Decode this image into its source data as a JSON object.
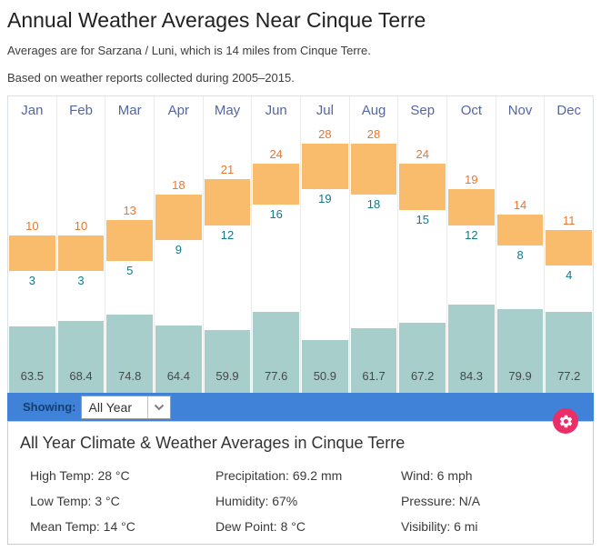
{
  "header": {
    "title": "Annual Weather Averages Near Cinque Terre",
    "subtitle1": "Averages are for Sarzana / Luni, which is 14 miles from Cinque Terre.",
    "subtitle2": "Based on weather reports collected during 2005–2015."
  },
  "chart_data": {
    "type": "bar",
    "categories": [
      "Jan",
      "Feb",
      "Mar",
      "Apr",
      "May",
      "Jun",
      "Jul",
      "Aug",
      "Sep",
      "Oct",
      "Nov",
      "Dec"
    ],
    "series": [
      {
        "name": "High Temp (°C)",
        "values": [
          10,
          10,
          13,
          18,
          21,
          24,
          28,
          28,
          24,
          19,
          14,
          11
        ]
      },
      {
        "name": "Low Temp (°C)",
        "values": [
          3,
          3,
          5,
          9,
          12,
          16,
          19,
          18,
          15,
          12,
          8,
          4
        ]
      },
      {
        "name": "Precipitation (mm)",
        "values": [
          63.5,
          68.4,
          74.8,
          64.4,
          59.9,
          77.6,
          50.9,
          61.7,
          67.2,
          84.3,
          79.9,
          77.2
        ]
      }
    ],
    "legend_position": "none",
    "grid": false,
    "colors": {
      "temp_bar": "#f9bc6d",
      "high_label": "#e8762d",
      "low_label": "#10798c",
      "precip_bar": "#a8cecb",
      "month_label": "#5566a0"
    }
  },
  "toolbar": {
    "showing_label": "Showing:",
    "dropdown_value": "All Year",
    "bar_color": "#3f82d8"
  },
  "settings": {
    "icon": "gear-icon",
    "color": "#ea2e68"
  },
  "summary": {
    "title": "All Year Climate & Weather Averages in Cinque Terre",
    "items": [
      {
        "label": "High Temp:",
        "value": "28 °C"
      },
      {
        "label": "Low Temp:",
        "value": "3 °C"
      },
      {
        "label": "Mean Temp:",
        "value": "14 °C"
      },
      {
        "label": "Precipitation:",
        "value": "69.2 mm"
      },
      {
        "label": "Humidity:",
        "value": "67%"
      },
      {
        "label": "Dew Point:",
        "value": "8 °C"
      },
      {
        "label": "Wind:",
        "value": "6 mph"
      },
      {
        "label": "Pressure:",
        "value": "N/A"
      },
      {
        "label": "Visibility:",
        "value": "6 mi"
      }
    ]
  }
}
